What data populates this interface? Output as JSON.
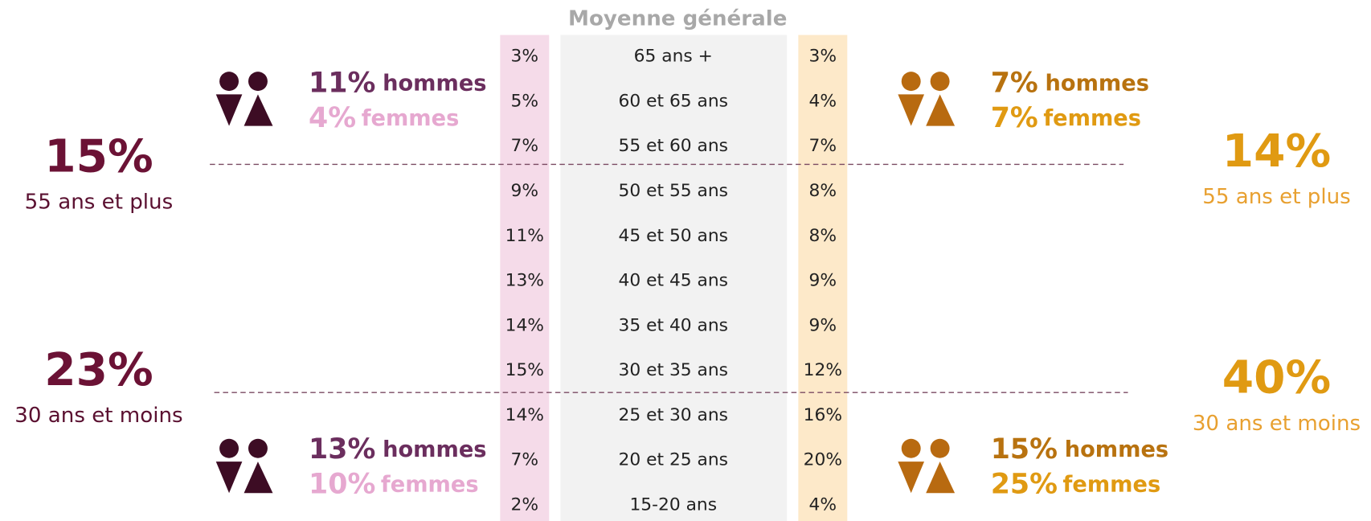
{
  "title": "Moyenne générale",
  "rows": [
    {
      "age": "65 ans +",
      "left": "3%",
      "right": "3%"
    },
    {
      "age": "60 et 65 ans",
      "left": "5%",
      "right": "4%"
    },
    {
      "age": "55 et 60 ans",
      "left": "7%",
      "right": "7%"
    },
    {
      "age": "50 et 55 ans",
      "left": "9%",
      "right": "8%"
    },
    {
      "age": "45 et 50 ans",
      "left": "11%",
      "right": "8%"
    },
    {
      "age": "40 et 45 ans",
      "left": "13%",
      "right": "9%"
    },
    {
      "age": "35 et 40 ans",
      "left": "14%",
      "right": "9%"
    },
    {
      "age": "30 et 35 ans",
      "left": "15%",
      "right": "12%"
    },
    {
      "age": "25 et 30 ans",
      "left": "14%",
      "right": "16%"
    },
    {
      "age": "20 et 25 ans",
      "left": "7%",
      "right": "20%"
    },
    {
      "age": "15-20 ans",
      "left": "2%",
      "right": "4%"
    }
  ],
  "left": {
    "top": {
      "value": "15%",
      "label": "55 ans et plus",
      "men": "11%",
      "men_label": "hommes",
      "women": "4%",
      "women_label": "femmes"
    },
    "bottom": {
      "value": "23%",
      "label": "30 ans et moins",
      "men": "13%",
      "men_label": "hommes",
      "women": "10%",
      "women_label": "femmes"
    }
  },
  "right": {
    "top": {
      "value": "14%",
      "label": "55 ans et plus",
      "men": "7%",
      "men_label": "hommes",
      "women": "7%",
      "women_label": "femmes"
    },
    "bottom": {
      "value": "40%",
      "label": "30 ans et moins",
      "men": "15%",
      "men_label": "hommes",
      "women": "25%",
      "women_label": "femmes"
    }
  }
}
